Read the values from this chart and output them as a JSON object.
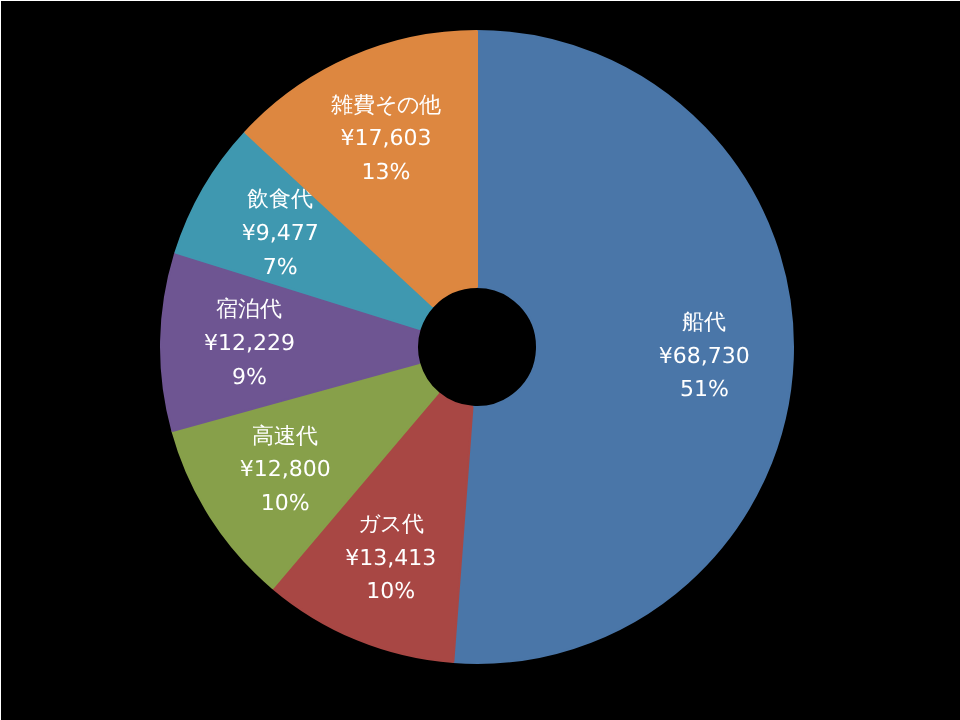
{
  "chart_data": {
    "type": "donut",
    "categories": [
      "船代",
      "ガス代",
      "高速代",
      "宿泊代",
      "飲食代",
      "雑費その他"
    ],
    "values": [
      68730,
      13413,
      12800,
      12229,
      9477,
      17603
    ],
    "colors": [
      "#4a76a8",
      "#a84744",
      "#87a04a",
      "#6e5592",
      "#3f98b0",
      "#dd8740"
    ],
    "value_labels": [
      "¥68,730\n51%",
      "¥13,413\n10%",
      "¥12,800\n10%",
      "¥12,229\n9%",
      "¥9,477\n7%",
      "¥17,603\n13%"
    ],
    "legend": false
  }
}
